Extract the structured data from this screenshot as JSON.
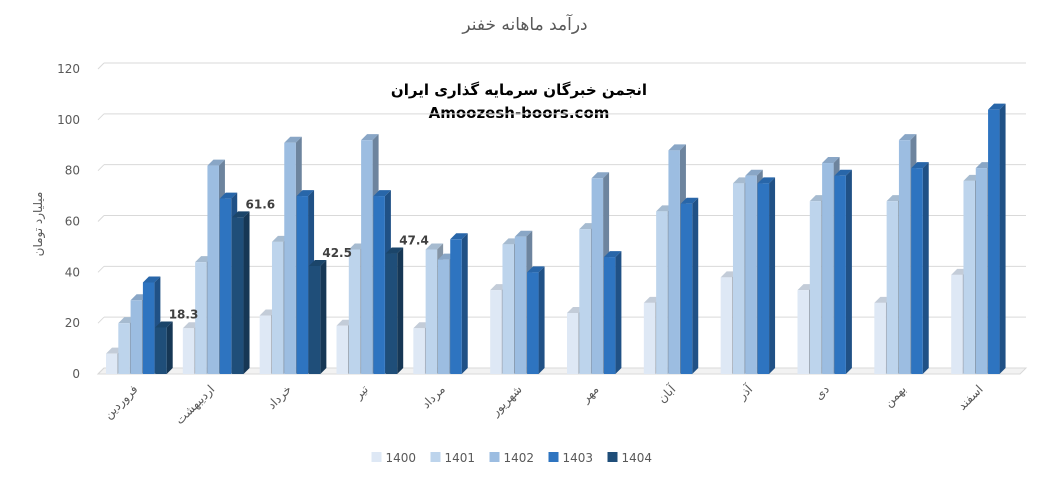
{
  "chart_data": {
    "type": "bar",
    "title": "درآمد ماهانه خفنر",
    "watermark_line1": "انجمن خبرگان سرمایه گذاری ایران",
    "watermark_line2": "Amoozesh-boors.com",
    "ylabel": "میلیارد تومان",
    "xlabel": "",
    "ylim": [
      0,
      120
    ],
    "yticks": [
      0,
      20,
      40,
      60,
      80,
      100,
      120
    ],
    "grid": true,
    "legend_position": "bottom",
    "categories": [
      "فروردین",
      "اردیبهشت",
      "خرداد",
      "تیر",
      "مرداد",
      "شهریور",
      "مهر",
      "آبان",
      "آذر",
      "دی",
      "بهمن",
      "اسفند"
    ],
    "series": [
      {
        "name": "1400",
        "color": "#dee8f5",
        "values": [
          8,
          18,
          23,
          19,
          18,
          33,
          24,
          28,
          38,
          33,
          28,
          39
        ]
      },
      {
        "name": "1401",
        "color": "#bdd4ec",
        "values": [
          20,
          44,
          52,
          49,
          49,
          51,
          57,
          64,
          75,
          68,
          68,
          76
        ]
      },
      {
        "name": "1402",
        "color": "#9cbde1",
        "values": [
          29,
          82,
          91,
          92,
          45,
          54,
          77,
          88,
          78,
          83,
          92,
          81
        ]
      },
      {
        "name": "1403",
        "color": "#2e74c0",
        "values": [
          36,
          69,
          70,
          70,
          53,
          40,
          46,
          67,
          75,
          78,
          81,
          104
        ]
      },
      {
        "name": "1404",
        "color": "#1f4e79",
        "values": [
          18.3,
          61.6,
          42.5,
          47.4,
          null,
          null,
          null,
          null,
          null,
          null,
          null,
          null
        ]
      }
    ],
    "data_labels": [
      {
        "category": "فروردین",
        "series": "1404",
        "text": "18.3"
      },
      {
        "category": "اردیبهشت",
        "series": "1404",
        "text": "61.6"
      },
      {
        "category": "خرداد",
        "series": "1404",
        "text": "42.5"
      },
      {
        "category": "تیر",
        "series": "1404",
        "text": "47.4"
      }
    ]
  }
}
